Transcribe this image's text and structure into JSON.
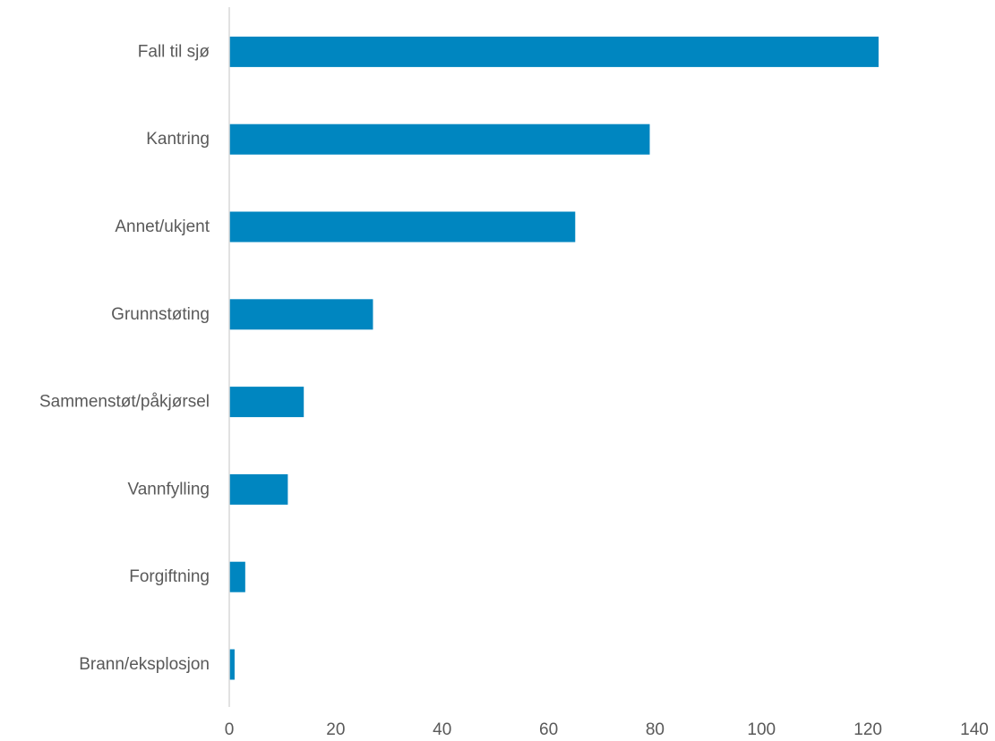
{
  "chart_data": {
    "type": "bar",
    "orientation": "horizontal",
    "categories": [
      "Fall til sjø",
      "Kantring",
      "Annet/ukjent",
      "Grunnstøting",
      "Sammenstøt/påkjørsel",
      "Vannfylling",
      "Forgiftning",
      "Brann/eksplosjon"
    ],
    "values": [
      122,
      79,
      65,
      27,
      14,
      11,
      3,
      1
    ],
    "xlim": [
      0,
      140
    ],
    "xticks": [
      "0",
      "20",
      "40",
      "60",
      "80",
      "100",
      "120",
      "140"
    ],
    "grid": false,
    "legend": "none",
    "bar_color": "#0086C0",
    "axis_color": "#D9D9D9"
  }
}
